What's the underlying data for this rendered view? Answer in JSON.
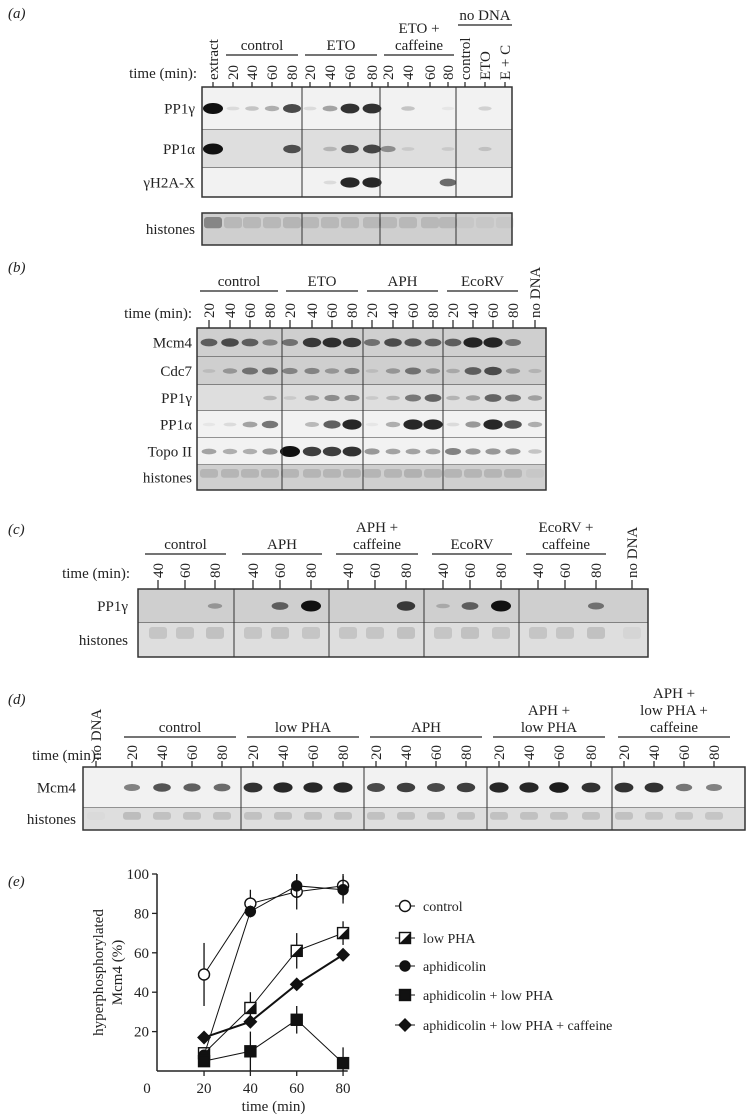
{
  "colors": {
    "band": "#111111",
    "blot_light": "#f2f2f2",
    "blot_mid": "#dedede",
    "blot_dark": "#cfcfcf",
    "ink": "#222222"
  },
  "panels": {
    "a": {
      "label": "(a)",
      "time_label": "time (min):",
      "groups": [
        {
          "lines": [
            "control"
          ]
        },
        {
          "lines": [
            "ETO"
          ]
        },
        {
          "lines": [
            "ETO +",
            "caffeine"
          ]
        },
        {
          "lines": [
            "no DNA"
          ]
        }
      ],
      "lanes": [
        "extract",
        "20",
        "40",
        "60",
        "80",
        "20",
        "40",
        "60",
        "80",
        "20",
        "40",
        "60",
        "80",
        "control",
        "ETO",
        "E + C"
      ],
      "rows": [
        {
          "label": "PP1γ",
          "bands": [
            1,
            0.1,
            0.2,
            0.3,
            0.75,
            0.1,
            0.35,
            0.85,
            0.85,
            0,
            0.2,
            0,
            0.05,
            0,
            0.15,
            0
          ]
        },
        {
          "label": "PP1α",
          "bands": [
            1,
            0,
            0,
            0,
            0.7,
            0,
            0.2,
            0.7,
            0.75,
            0.4,
            0.1,
            0,
            0.1,
            0,
            0.15,
            0
          ]
        },
        {
          "label": "γH2A-X",
          "bands": [
            0,
            0,
            0,
            0,
            0,
            0,
            0.1,
            0.9,
            0.9,
            0,
            0,
            0,
            0.6,
            0,
            0,
            0
          ]
        },
        {
          "label": "histones",
          "bands": [
            1,
            0.3,
            0.3,
            0.3,
            0.35,
            0.3,
            0.3,
            0.3,
            0.3,
            0.3,
            0.3,
            0.3,
            0.3,
            0.1,
            0.1,
            0.1
          ]
        }
      ]
    },
    "b": {
      "label": "(b)",
      "time_label": "time (min):",
      "groups": [
        {
          "lines": [
            "control"
          ]
        },
        {
          "lines": [
            "ETO"
          ]
        },
        {
          "lines": [
            "APH"
          ]
        },
        {
          "lines": [
            "EcoRV"
          ]
        }
      ],
      "lanes": [
        "20",
        "40",
        "60",
        "80",
        "20",
        "40",
        "60",
        "80",
        "20",
        "40",
        "60",
        "80",
        "20",
        "40",
        "60",
        "80",
        "no DNA"
      ],
      "rows": [
        {
          "label": "Mcm4",
          "bands": [
            0.6,
            0.7,
            0.6,
            0.4,
            0.5,
            0.8,
            0.85,
            0.8,
            0.5,
            0.7,
            0.65,
            0.6,
            0.6,
            0.9,
            0.9,
            0.5,
            0
          ]
        },
        {
          "label": "Cdc7",
          "bands": [
            0.1,
            0.3,
            0.5,
            0.5,
            0.4,
            0.4,
            0.3,
            0.4,
            0.1,
            0.3,
            0.5,
            0.3,
            0.2,
            0.6,
            0.7,
            0.3,
            0.15
          ]
        },
        {
          "label": "PP1γ",
          "bands": [
            0,
            0,
            0,
            0.2,
            0.1,
            0.3,
            0.4,
            0.4,
            0.1,
            0.2,
            0.5,
            0.6,
            0.2,
            0.3,
            0.6,
            0.5,
            0.3
          ]
        },
        {
          "label": "PP1α",
          "bands": [
            0.05,
            0.1,
            0.35,
            0.55,
            0,
            0.25,
            0.65,
            0.9,
            0.05,
            0.3,
            0.9,
            0.9,
            0.1,
            0.4,
            0.9,
            0.7,
            0.3
          ]
        },
        {
          "label": "Topo II",
          "bands": [
            0.35,
            0.3,
            0.3,
            0.4,
            1,
            0.8,
            0.8,
            0.85,
            0.4,
            0.35,
            0.35,
            0.35,
            0.5,
            0.4,
            0.4,
            0.4,
            0.2
          ]
        },
        {
          "label": "histones",
          "bands": [
            0.35,
            0.35,
            0.35,
            0.35,
            0.35,
            0.35,
            0.35,
            0.35,
            0.35,
            0.35,
            0.4,
            0.35,
            0.35,
            0.35,
            0.35,
            0.35,
            0.1
          ]
        }
      ]
    },
    "c": {
      "label": "(c)",
      "time_label": "time (min):",
      "groups": [
        {
          "lines": [
            "control"
          ]
        },
        {
          "lines": [
            "APH"
          ]
        },
        {
          "lines": [
            "APH +",
            "caffeine"
          ]
        },
        {
          "lines": [
            "EcoRV"
          ]
        },
        {
          "lines": [
            "EcoRV +",
            "caffeine"
          ]
        }
      ],
      "lanes": [
        "40",
        "60",
        "80",
        "40",
        "60",
        "80",
        "40",
        "60",
        "80",
        "40",
        "60",
        "80",
        "40",
        "60",
        "80",
        "no DNA"
      ],
      "rows": [
        {
          "label": "PP1γ",
          "bands": [
            0,
            0,
            0.3,
            0,
            0.6,
            1,
            0,
            0,
            0.8,
            0.2,
            0.6,
            1,
            0,
            0,
            0.5,
            0
          ]
        },
        {
          "label": "histones",
          "bands": [
            0.3,
            0.3,
            0.35,
            0.3,
            0.35,
            0.3,
            0.3,
            0.3,
            0.35,
            0.3,
            0.35,
            0.3,
            0.3,
            0.3,
            0.35,
            0.1
          ]
        }
      ]
    },
    "d": {
      "label": "(d)",
      "time_label": "time (min):",
      "groups": [
        {
          "lines": [
            "control"
          ]
        },
        {
          "lines": [
            "low PHA"
          ]
        },
        {
          "lines": [
            "APH"
          ]
        },
        {
          "lines": [
            "APH +",
            "low PHA"
          ]
        },
        {
          "lines": [
            "APH +",
            "low PHA +",
            "caffeine"
          ]
        }
      ],
      "lanes": [
        "no DNA",
        "20",
        "40",
        "60",
        "80",
        "20",
        "40",
        "60",
        "80",
        "20",
        "40",
        "60",
        "80",
        "20",
        "40",
        "60",
        "80",
        "20",
        "40",
        "60",
        "80"
      ],
      "rows": [
        {
          "label": "Mcm4",
          "bands": [
            0,
            0.5,
            0.7,
            0.65,
            0.6,
            0.85,
            0.9,
            0.9,
            0.9,
            0.75,
            0.8,
            0.75,
            0.8,
            0.9,
            0.9,
            0.95,
            0.85,
            0.85,
            0.85,
            0.55,
            0.5
          ]
        },
        {
          "label": "histones",
          "bands": [
            0.05,
            0.4,
            0.35,
            0.35,
            0.35,
            0.35,
            0.35,
            0.35,
            0.35,
            0.35,
            0.35,
            0.35,
            0.35,
            0.35,
            0.35,
            0.35,
            0.35,
            0.35,
            0.3,
            0.3,
            0.3
          ]
        }
      ]
    }
  },
  "chart_data": {
    "label": "(e)",
    "type": "line",
    "xlabel": "time (min)",
    "ylabel_lines": [
      "hyperphosphorylated",
      "Mcm4 (%)"
    ],
    "x": [
      20,
      40,
      60,
      80
    ],
    "xticks": [
      "0",
      "20",
      "40",
      "60",
      "80"
    ],
    "yticks": [
      "20",
      "40",
      "60",
      "80",
      "100"
    ],
    "xlim": [
      0,
      82
    ],
    "ylim": [
      0,
      100
    ],
    "grid": false,
    "legend_position": "right",
    "series": [
      {
        "name": "control",
        "marker": "open-circle",
        "values": [
          49,
          85,
          91,
          94
        ],
        "error": [
          16,
          7,
          9,
          7
        ]
      },
      {
        "name": "low PHA",
        "marker": "half-filled-square",
        "values": [
          9,
          32,
          61,
          70
        ],
        "error": [
          3,
          8,
          9,
          6
        ]
      },
      {
        "name": "aphidicolin",
        "marker": "filled-circle",
        "values": [
          8,
          81,
          94,
          92
        ],
        "error": [
          2,
          3,
          6,
          7
        ]
      },
      {
        "name": "aphidicolin + low PHA",
        "marker": "filled-square",
        "values": [
          5,
          10,
          26,
          4
        ],
        "error": [
          2,
          10,
          7,
          8
        ]
      },
      {
        "name": "aphidicolin + low PHA + caffeine",
        "marker": "filled-diamond",
        "values": [
          17,
          25,
          44,
          59
        ],
        "error": [
          0,
          0,
          0,
          0
        ]
      }
    ]
  }
}
